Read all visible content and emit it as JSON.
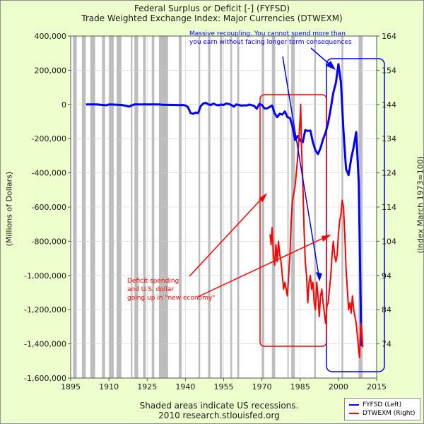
{
  "titles": {
    "line1": "Federal Surplus or Deficit [-] (FYFSD)",
    "line2": "Trade Weighted Exchange Index: Major Currencies (DTWEXM)"
  },
  "footer": {
    "line1": "Shaded areas indicate US recessions.",
    "line2": "2010 research.stlouisfed.org"
  },
  "chart_data": {
    "type": "line",
    "xlim": [
      1895,
      2015
    ],
    "ylim_left": [
      -1600000,
      400000
    ],
    "ylim_right": [
      64,
      164
    ],
    "ylabel_left": "(Millions of Dollars)",
    "ylabel_right": "(Index March 1973=100)",
    "x_ticks": [
      "1895",
      "1910",
      "1925",
      "1940",
      "1955",
      "1970",
      "1985",
      "2000",
      "2015"
    ],
    "y_ticks_left": [
      "400,000",
      "200,000",
      "0",
      "-200,000",
      "-400,000",
      "-600,000",
      "-800,000",
      "-1,000,000",
      "-1,200,000",
      "-1,400,000",
      "-1,600,000"
    ],
    "y_ticks_right": [
      "164",
      "154",
      "144",
      "134",
      "124",
      "114",
      "104",
      "94",
      "84",
      "74"
    ],
    "recessions": [
      [
        1895.9,
        1897.4
      ],
      [
        1899.4,
        1900.9
      ],
      [
        1902.7,
        1904.6
      ],
      [
        1907.3,
        1908.5
      ],
      [
        1910.0,
        1911.9
      ],
      [
        1913.0,
        1914.9
      ],
      [
        1918.6,
        1919.2
      ],
      [
        1920.0,
        1921.5
      ],
      [
        1923.4,
        1924.5
      ],
      [
        1926.8,
        1927.8
      ],
      [
        1929.6,
        1933.2
      ],
      [
        1937.4,
        1938.5
      ],
      [
        1945.1,
        1945.8
      ],
      [
        1948.9,
        1949.8
      ],
      [
        1953.5,
        1954.4
      ],
      [
        1957.6,
        1958.3
      ],
      [
        1960.3,
        1961.1
      ],
      [
        1969.9,
        1970.9
      ],
      [
        1973.9,
        1975.2
      ],
      [
        1980.0,
        1980.5
      ],
      [
        1981.5,
        1982.9
      ],
      [
        1990.5,
        1991.2
      ],
      [
        2001.2,
        2001.9
      ],
      [
        2007.9,
        2009.5
      ]
    ],
    "series": [
      {
        "name": "FYFSD (Left)",
        "color": "#0000ff",
        "axis": "left",
        "points": [
          [
            1901,
            0
          ],
          [
            1905,
            0
          ],
          [
            1909,
            -5000
          ],
          [
            1910,
            0
          ],
          [
            1915,
            -3000
          ],
          [
            1917,
            -9000
          ],
          [
            1918,
            -13000
          ],
          [
            1919,
            -5000
          ],
          [
            1920,
            0
          ],
          [
            1925,
            0
          ],
          [
            1930,
            0
          ],
          [
            1931,
            -2000
          ],
          [
            1935,
            -3000
          ],
          [
            1938,
            -4000
          ],
          [
            1939,
            -3000
          ],
          [
            1940,
            -6000
          ],
          [
            1941,
            -15000
          ],
          [
            1942,
            -50000
          ],
          [
            1943,
            -55000
          ],
          [
            1944,
            -48000
          ],
          [
            1945,
            -50000
          ],
          [
            1946,
            -10000
          ],
          [
            1947,
            5000
          ],
          [
            1948,
            10000
          ],
          [
            1949,
            0
          ],
          [
            1950,
            -3000
          ],
          [
            1951,
            5000
          ],
          [
            1952,
            -2000
          ],
          [
            1953,
            -5000
          ],
          [
            1954,
            -1000
          ],
          [
            1955,
            -3000
          ],
          [
            1956,
            5000
          ],
          [
            1957,
            3000
          ],
          [
            1958,
            -3000
          ],
          [
            1959,
            -13000
          ],
          [
            1960,
            0
          ],
          [
            1961,
            -3000
          ],
          [
            1962,
            -7000
          ],
          [
            1963,
            -5000
          ],
          [
            1964,
            -6000
          ],
          [
            1965,
            -1000
          ],
          [
            1966,
            -4000
          ],
          [
            1967,
            -9000
          ],
          [
            1968,
            -25000
          ],
          [
            1969,
            3000
          ],
          [
            1970,
            -3000
          ],
          [
            1971,
            -23000
          ],
          [
            1972,
            -23000
          ],
          [
            1973,
            -15000
          ],
          [
            1974,
            -6000
          ],
          [
            1975,
            -53000
          ],
          [
            1976,
            -74000
          ],
          [
            1977,
            -54000
          ],
          [
            1978,
            -59000
          ],
          [
            1979,
            -41000
          ],
          [
            1980,
            -74000
          ],
          [
            1981,
            -79000
          ],
          [
            1982,
            -128000
          ],
          [
            1983,
            -208000
          ],
          [
            1984,
            -185000
          ],
          [
            1985,
            -212000
          ],
          [
            1986,
            -221000
          ],
          [
            1987,
            -150000
          ],
          [
            1988,
            -155000
          ],
          [
            1989,
            -153000
          ],
          [
            1990,
            -221000
          ],
          [
            1991,
            -269000
          ],
          [
            1992,
            -290000
          ],
          [
            1993,
            -255000
          ],
          [
            1994,
            -203000
          ],
          [
            1995,
            -164000
          ],
          [
            1996,
            -107000
          ],
          [
            1997,
            -22000
          ],
          [
            1998,
            69000
          ],
          [
            1999,
            126000
          ],
          [
            2000,
            236000
          ],
          [
            2001,
            128000
          ],
          [
            2002,
            -158000
          ],
          [
            2003,
            -378000
          ],
          [
            2004,
            -413000
          ],
          [
            2005,
            -318000
          ],
          [
            2006,
            -248000
          ],
          [
            2007,
            -161000
          ],
          [
            2008,
            -459000
          ],
          [
            2009,
            -1413000
          ]
        ]
      },
      {
        "name": "DTWEXM (Right)",
        "color": "#ff0000",
        "axis": "right",
        "points": [
          [
            1973.2,
            106
          ],
          [
            1973.6,
            103
          ],
          [
            1974.0,
            108
          ],
          [
            1974.5,
            100
          ],
          [
            1975.0,
            97
          ],
          [
            1975.5,
            103
          ],
          [
            1976.0,
            98
          ],
          [
            1976.5,
            104
          ],
          [
            1977.0,
            100
          ],
          [
            1977.5,
            98
          ],
          [
            1978.0,
            94
          ],
          [
            1978.5,
            90
          ],
          [
            1979.0,
            92
          ],
          [
            1979.5,
            90
          ],
          [
            1980.0,
            88
          ],
          [
            1980.5,
            94
          ],
          [
            1981.0,
            100
          ],
          [
            1981.5,
            110
          ],
          [
            1982.0,
            116
          ],
          [
            1982.5,
            118
          ],
          [
            1983.0,
            120
          ],
          [
            1983.5,
            124
          ],
          [
            1984.0,
            128
          ],
          [
            1984.5,
            134
          ],
          [
            1985.0,
            140
          ],
          [
            1985.2,
            144
          ],
          [
            1985.5,
            132
          ],
          [
            1986.0,
            122
          ],
          [
            1986.5,
            108
          ],
          [
            1987.0,
            98
          ],
          [
            1987.5,
            94
          ],
          [
            1988.0,
            86
          ],
          [
            1988.5,
            92
          ],
          [
            1989.0,
            94
          ],
          [
            1989.5,
            90
          ],
          [
            1990.0,
            92
          ],
          [
            1990.5,
            86
          ],
          [
            1991.0,
            84
          ],
          [
            1991.5,
            92
          ],
          [
            1992.0,
            88
          ],
          [
            1992.5,
            82
          ],
          [
            1993.0,
            88
          ],
          [
            1993.5,
            90
          ],
          [
            1994.0,
            86
          ],
          [
            1994.5,
            83
          ],
          [
            1995.0,
            80
          ],
          [
            1995.5,
            85
          ],
          [
            1996.0,
            86
          ],
          [
            1996.5,
            90
          ],
          [
            1997.0,
            94
          ],
          [
            1997.5,
            100
          ],
          [
            1998.0,
            104
          ],
          [
            1998.5,
            100
          ],
          [
            1999.0,
            98
          ],
          [
            1999.5,
            100
          ],
          [
            2000.0,
            106
          ],
          [
            2000.5,
            110
          ],
          [
            2001.0,
            112
          ],
          [
            2001.5,
            116
          ],
          [
            2002.0,
            114
          ],
          [
            2002.5,
            106
          ],
          [
            2003.0,
            96
          ],
          [
            2003.5,
            90
          ],
          [
            2004.0,
            84
          ],
          [
            2004.5,
            86
          ],
          [
            2005.0,
            83
          ],
          [
            2005.5,
            88
          ],
          [
            2006.0,
            84
          ],
          [
            2006.5,
            82
          ],
          [
            2007.0,
            80
          ],
          [
            2007.5,
            76
          ],
          [
            2008.0,
            72
          ],
          [
            2008.3,
            70
          ],
          [
            2008.7,
            79
          ],
          [
            2009.0,
            80
          ],
          [
            2009.3,
            76
          ],
          [
            2009.6,
            73
          ]
        ]
      }
    ]
  },
  "annotations": {
    "blue_note_line1": "Massive recoupling.  You cannot spend more than",
    "blue_note_line2": "you earn without facing longer term consequences",
    "red_note_line1": "Deficit spending",
    "red_note_line2": "and U.S. dollar",
    "red_note_line3": "going up in \"new economy\""
  },
  "legend": {
    "item1": "FYFSD (Left)",
    "item2": "DTWEXM (Right)",
    "color1": "#0000ff",
    "color2": "#ff0000"
  }
}
